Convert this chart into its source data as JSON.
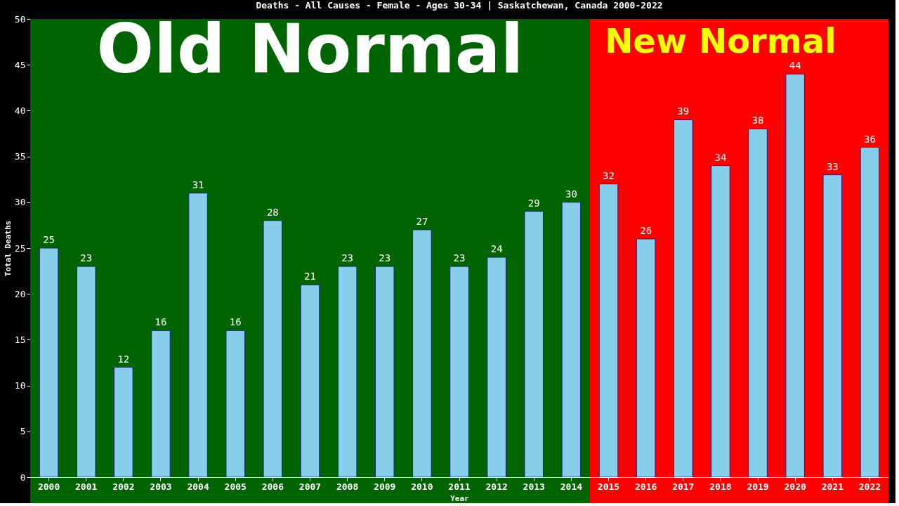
{
  "chart_data": {
    "type": "bar",
    "title": "Deaths - All Causes - Female - Ages 30-34 | Saskatchewan, Canada 2000-2022",
    "xlabel": "Year",
    "ylabel": "Total Deaths",
    "categories": [
      "2000",
      "2001",
      "2002",
      "2003",
      "2004",
      "2005",
      "2006",
      "2007",
      "2008",
      "2009",
      "2010",
      "2011",
      "2012",
      "2013",
      "2014",
      "2015",
      "2016",
      "2017",
      "2018",
      "2019",
      "2020",
      "2021",
      "2022"
    ],
    "series": [
      {
        "color": "#87ceeb",
        "values": [
          25,
          23,
          12,
          16,
          31,
          16,
          28,
          21,
          23,
          23,
          27,
          23,
          24,
          29,
          30,
          32,
          26,
          39,
          34,
          38,
          44,
          33,
          36
        ]
      }
    ],
    "ylim": [
      0,
      50
    ],
    "yticks": [
      0,
      5,
      10,
      15,
      20,
      25,
      30,
      35,
      40,
      45,
      50
    ],
    "grid": false,
    "data_labels": true,
    "bands": [
      {
        "axis": "x",
        "from": "2000",
        "to": "2014",
        "label": "Old Normal",
        "color": "#006400"
      },
      {
        "axis": "x",
        "from": "2015",
        "to": "2022",
        "label": "New Normal",
        "color": "#ff0000"
      }
    ]
  }
}
